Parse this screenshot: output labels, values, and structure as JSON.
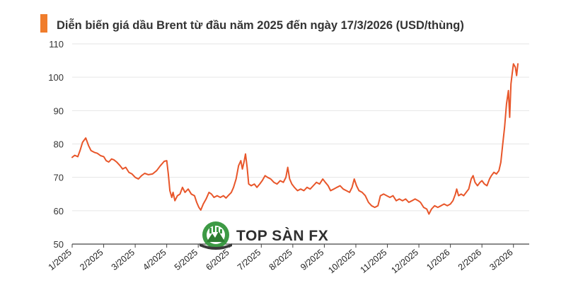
{
  "chart_data": {
    "type": "line",
    "title": "Diễn biến giá dầu Brent từ đầu năm 2025 đến ngày 17/3/2026 (USD/thùng)",
    "xlabel": "",
    "ylabel": "",
    "ylim": [
      50,
      110
    ],
    "yticks": [
      50,
      60,
      70,
      80,
      90,
      100,
      110
    ],
    "grid": true,
    "legend": "none",
    "x_axis": "month index (0 = 1/2025)",
    "xticks": [
      {
        "x": 0,
        "label": "1/2025"
      },
      {
        "x": 1,
        "label": "2/2025"
      },
      {
        "x": 2,
        "label": "3/2025"
      },
      {
        "x": 3,
        "label": "4/2025"
      },
      {
        "x": 4,
        "label": "5/2025"
      },
      {
        "x": 5,
        "label": "6/2025"
      },
      {
        "x": 6,
        "label": "7/2025"
      },
      {
        "x": 7,
        "label": "8/2025"
      },
      {
        "x": 8,
        "label": "9/2025"
      },
      {
        "x": 9,
        "label": "10/2025"
      },
      {
        "x": 10,
        "label": "11/2025"
      },
      {
        "x": 11,
        "label": "12/2025"
      },
      {
        "x": 12,
        "label": "1/2026"
      },
      {
        "x": 13,
        "label": "2/2026"
      },
      {
        "x": 14,
        "label": "3/2026"
      }
    ],
    "series": [
      {
        "color": "#e8562a",
        "points": [
          [
            0.0,
            76.0
          ],
          [
            0.08,
            76.6
          ],
          [
            0.18,
            76.2
          ],
          [
            0.25,
            78.0
          ],
          [
            0.33,
            80.5
          ],
          [
            0.43,
            81.8
          ],
          [
            0.52,
            79.5
          ],
          [
            0.6,
            78.0
          ],
          [
            0.7,
            77.5
          ],
          [
            0.8,
            77.2
          ],
          [
            0.9,
            76.5
          ],
          [
            1.0,
            76.2
          ],
          [
            1.08,
            75.0
          ],
          [
            1.16,
            74.6
          ],
          [
            1.25,
            75.5
          ],
          [
            1.33,
            75.2
          ],
          [
            1.42,
            74.5
          ],
          [
            1.52,
            73.5
          ],
          [
            1.6,
            72.5
          ],
          [
            1.7,
            73.0
          ],
          [
            1.8,
            71.5
          ],
          [
            1.9,
            71.0
          ],
          [
            2.0,
            70.0
          ],
          [
            2.1,
            69.5
          ],
          [
            2.2,
            70.5
          ],
          [
            2.3,
            71.2
          ],
          [
            2.42,
            70.8
          ],
          [
            2.55,
            71.0
          ],
          [
            2.68,
            72.0
          ],
          [
            2.8,
            73.5
          ],
          [
            2.92,
            74.8
          ],
          [
            3.0,
            75.0
          ],
          [
            3.05,
            71.0
          ],
          [
            3.1,
            66.0
          ],
          [
            3.16,
            64.0
          ],
          [
            3.2,
            65.5
          ],
          [
            3.26,
            63.0
          ],
          [
            3.34,
            64.5
          ],
          [
            3.42,
            65.0
          ],
          [
            3.5,
            67.0
          ],
          [
            3.58,
            65.5
          ],
          [
            3.68,
            66.5
          ],
          [
            3.78,
            65.0
          ],
          [
            3.88,
            64.5
          ],
          [
            3.95,
            62.5
          ],
          [
            4.02,
            61.0
          ],
          [
            4.08,
            60.2
          ],
          [
            4.16,
            62.0
          ],
          [
            4.25,
            63.5
          ],
          [
            4.34,
            65.5
          ],
          [
            4.42,
            65.0
          ],
          [
            4.5,
            64.0
          ],
          [
            4.6,
            64.5
          ],
          [
            4.7,
            64.0
          ],
          [
            4.8,
            64.5
          ],
          [
            4.88,
            63.8
          ],
          [
            4.95,
            64.5
          ],
          [
            5.05,
            65.5
          ],
          [
            5.12,
            67.0
          ],
          [
            5.2,
            69.5
          ],
          [
            5.28,
            73.5
          ],
          [
            5.35,
            75.0
          ],
          [
            5.4,
            72.5
          ],
          [
            5.45,
            74.5
          ],
          [
            5.5,
            77.0
          ],
          [
            5.55,
            73.0
          ],
          [
            5.6,
            68.0
          ],
          [
            5.68,
            67.5
          ],
          [
            5.78,
            68.0
          ],
          [
            5.86,
            67.0
          ],
          [
            5.95,
            68.0
          ],
          [
            6.03,
            69.0
          ],
          [
            6.12,
            70.5
          ],
          [
            6.2,
            70.0
          ],
          [
            6.3,
            69.5
          ],
          [
            6.4,
            68.5
          ],
          [
            6.5,
            68.0
          ],
          [
            6.6,
            69.0
          ],
          [
            6.7,
            68.5
          ],
          [
            6.78,
            70.0
          ],
          [
            6.84,
            73.0
          ],
          [
            6.9,
            69.5
          ],
          [
            6.97,
            68.0
          ],
          [
            7.05,
            67.0
          ],
          [
            7.15,
            66.0
          ],
          [
            7.25,
            66.5
          ],
          [
            7.35,
            66.0
          ],
          [
            7.45,
            67.0
          ],
          [
            7.55,
            66.5
          ],
          [
            7.65,
            67.5
          ],
          [
            7.75,
            68.5
          ],
          [
            7.85,
            68.0
          ],
          [
            7.95,
            69.5
          ],
          [
            8.03,
            68.5
          ],
          [
            8.12,
            67.5
          ],
          [
            8.2,
            66.0
          ],
          [
            8.3,
            66.5
          ],
          [
            8.4,
            67.0
          ],
          [
            8.5,
            67.5
          ],
          [
            8.6,
            66.5
          ],
          [
            8.7,
            66.0
          ],
          [
            8.8,
            65.5
          ],
          [
            8.88,
            67.0
          ],
          [
            8.95,
            69.5
          ],
          [
            9.02,
            67.5
          ],
          [
            9.1,
            66.0
          ],
          [
            9.2,
            65.5
          ],
          [
            9.3,
            64.5
          ],
          [
            9.4,
            62.5
          ],
          [
            9.5,
            61.5
          ],
          [
            9.6,
            61.0
          ],
          [
            9.7,
            61.5
          ],
          [
            9.78,
            64.5
          ],
          [
            9.88,
            65.0
          ],
          [
            9.98,
            64.5
          ],
          [
            10.08,
            64.0
          ],
          [
            10.18,
            64.5
          ],
          [
            10.28,
            63.0
          ],
          [
            10.38,
            63.5
          ],
          [
            10.48,
            63.0
          ],
          [
            10.58,
            63.5
          ],
          [
            10.68,
            62.5
          ],
          [
            10.78,
            63.0
          ],
          [
            10.88,
            63.5
          ],
          [
            10.98,
            63.0
          ],
          [
            11.05,
            62.5
          ],
          [
            11.15,
            61.0
          ],
          [
            11.25,
            60.5
          ],
          [
            11.32,
            59.0
          ],
          [
            11.4,
            60.5
          ],
          [
            11.5,
            61.5
          ],
          [
            11.6,
            61.0
          ],
          [
            11.7,
            61.5
          ],
          [
            11.8,
            62.0
          ],
          [
            11.9,
            61.5
          ],
          [
            12.0,
            62.0
          ],
          [
            12.08,
            63.0
          ],
          [
            12.16,
            65.0
          ],
          [
            12.2,
            66.5
          ],
          [
            12.26,
            64.5
          ],
          [
            12.34,
            65.0
          ],
          [
            12.42,
            64.5
          ],
          [
            12.5,
            65.5
          ],
          [
            12.58,
            66.5
          ],
          [
            12.66,
            69.5
          ],
          [
            12.72,
            70.5
          ],
          [
            12.78,
            68.5
          ],
          [
            12.86,
            67.5
          ],
          [
            12.94,
            68.5
          ],
          [
            13.0,
            69.0
          ],
          [
            13.08,
            68.0
          ],
          [
            13.16,
            67.5
          ],
          [
            13.24,
            69.5
          ],
          [
            13.3,
            70.5
          ],
          [
            13.38,
            71.5
          ],
          [
            13.46,
            71.0
          ],
          [
            13.54,
            72.0
          ],
          [
            13.6,
            74.5
          ],
          [
            13.66,
            80.0
          ],
          [
            13.72,
            85.0
          ],
          [
            13.78,
            92.0
          ],
          [
            13.84,
            96.0
          ],
          [
            13.88,
            88.0
          ],
          [
            13.92,
            98.0
          ],
          [
            13.96,
            101.0
          ],
          [
            14.0,
            104.0
          ],
          [
            14.06,
            103.0
          ],
          [
            14.1,
            100.5
          ],
          [
            14.14,
            104.0
          ]
        ]
      }
    ]
  },
  "title_marker_color": "#f07d2c",
  "watermark": {
    "text": "TOP SÀN FX",
    "icon": "mountain-logo-icon"
  }
}
